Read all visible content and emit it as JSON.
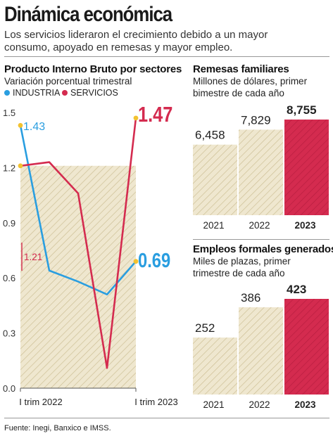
{
  "header": {
    "title": "Dinámica económica",
    "subtitle_line1": "Los servicios lideraron el crecimiento debido a un mayor",
    "subtitle_line2": "consumo, apoyado en remesas y mayor empleo."
  },
  "footer": {
    "source": "Fuente: Inegi, Banxico e IMSS."
  },
  "colors": {
    "industria": "#2a9ee0",
    "servicios": "#d42b4f",
    "highlight": "#d42b4f",
    "hatch": "#efe7cf",
    "hatch_line": "#c9b98a"
  },
  "chart_data": [
    {
      "type": "line",
      "title": "Producto Interno Bruto por sectores",
      "subtitle": "Variación porcentual trimestral",
      "legend": [
        "INDUSTRIA",
        "SERVICIOS"
      ],
      "x_labels": [
        "I trim 2022",
        "I trim 2023"
      ],
      "y_ticks": [
        "1.5",
        "1.2",
        "0.9",
        "0.6",
        "0.3",
        "0.0"
      ],
      "ylim": [
        0,
        1.5
      ],
      "grid": false,
      "series": [
        {
          "name": "INDUSTRIA",
          "values": [
            1.43,
            0.64,
            0.58,
            0.51,
            0.69
          ]
        },
        {
          "name": "SERVICIOS",
          "values": [
            1.21,
            1.23,
            1.06,
            0.11,
            1.47
          ]
        }
      ],
      "annotations": {
        "industria_start": "1.43",
        "servicios_start": "1.21",
        "servicios_end": "1.47",
        "industria_end": "0.69"
      }
    },
    {
      "type": "bar",
      "title": "Remesas familiares",
      "subtitle_line1": "Millones de dólares, primer",
      "subtitle_line2": "bimestre de cada año",
      "categories": [
        "2021",
        "2022",
        "2023"
      ],
      "values": [
        6458,
        7829,
        8755
      ],
      "value_labels": [
        "6,458",
        "7,829",
        "8,755"
      ],
      "ylim": [
        0,
        8755
      ]
    },
    {
      "type": "bar",
      "title": "Empleos formales generados",
      "subtitle_line1": "Miles de plazas, primer",
      "subtitle_line2": "trimestre de cada año",
      "categories": [
        "2021",
        "2022",
        "2023"
      ],
      "values": [
        252,
        386,
        423
      ],
      "value_labels": [
        "252",
        "386",
        "423"
      ],
      "ylim": [
        0,
        423
      ]
    }
  ]
}
